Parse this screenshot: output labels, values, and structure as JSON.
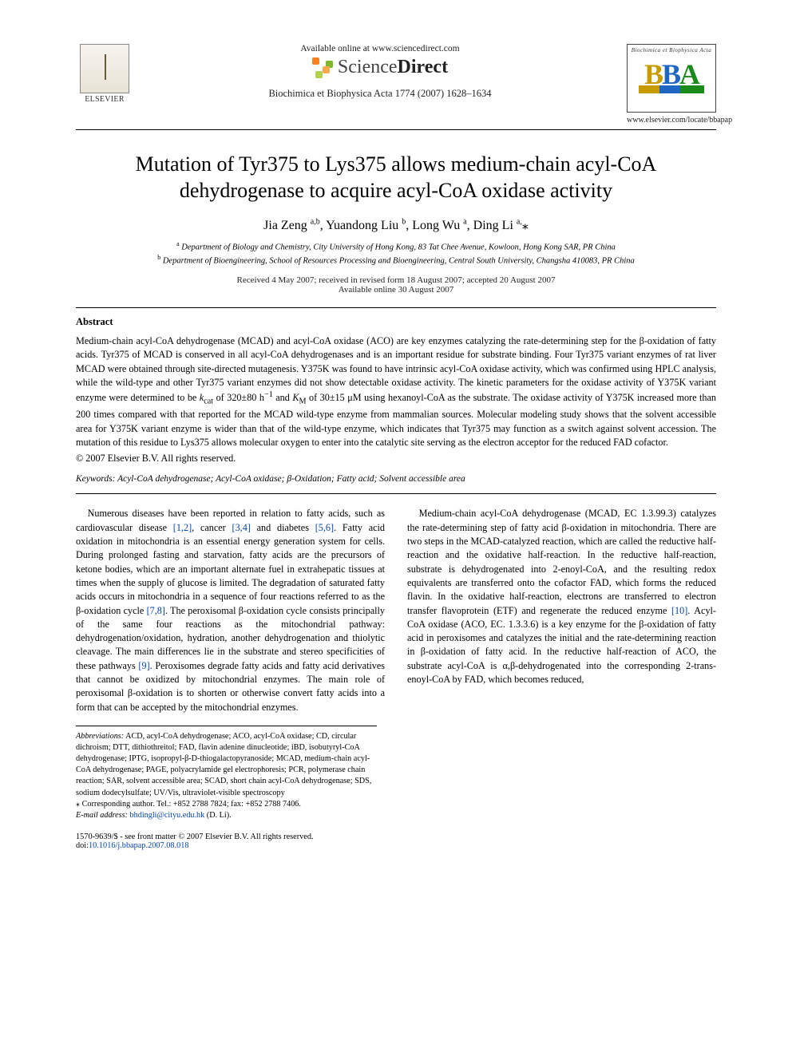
{
  "header": {
    "available_line": "Available online at www.sciencedirect.com",
    "sciencedirect": {
      "brand_pre": "Science",
      "brand_post": "Direct"
    },
    "sd_mark_colors": [
      "#f58220",
      "#7db928",
      "#b2d24a",
      "#f9a94b"
    ],
    "journal_ref": "Biochimica et Biophysica Acta 1774 (2007) 1628–1634",
    "elsevier_label": "ELSEVIER",
    "bba_top": "Biochimica et Biophysica Acta",
    "bba_letters": [
      "B",
      "B",
      "A"
    ],
    "bba_letter_colors": [
      "#c79a00",
      "#1f66c2",
      "#1a8a1a"
    ],
    "bba_bar_colors": [
      "#c79a00",
      "#1f66c2",
      "#1a8a1a"
    ],
    "bba_bar_widths": [
      26,
      26,
      30
    ],
    "bba_url": "www.elsevier.com/locate/bbapap"
  },
  "title": "Mutation of Tyr375 to Lys375 allows medium-chain acyl-CoA dehydrogenase to acquire acyl-CoA oxidase activity",
  "authors_html": "Jia Zeng <sup>a,b</sup>, Yuandong Liu <sup>b</sup>, Long Wu <sup>a</sup>, Ding Li <sup>a,</sup><span class='ast'>⁎</span>",
  "affiliations": {
    "a": "a Department of Biology and Chemistry, City University of Hong Kong, 83 Tat Chee Avenue, Kowloon, Hong Kong SAR, PR China",
    "b": "b Department of Bioengineering, School of Resources Processing and Bioengineering, Central South University, Changsha 410083, PR China"
  },
  "dates": {
    "line1": "Received 4 May 2007; received in revised form 18 August 2007; accepted 20 August 2007",
    "line2": "Available online 30 August 2007"
  },
  "abstract_heading": "Abstract",
  "abstract": "Medium-chain acyl-CoA dehydrogenase (MCAD) and acyl-CoA oxidase (ACO) are key enzymes catalyzing the rate-determining step for the β-oxidation of fatty acids. Tyr375 of MCAD is conserved in all acyl-CoA dehydrogenases and is an important residue for substrate binding. Four Tyr375 variant enzymes of rat liver MCAD were obtained through site-directed mutagenesis. Y375K was found to have intrinsic acyl-CoA oxidase activity, which was confirmed using HPLC analysis, while the wild-type and other Tyr375 variant enzymes did not show detectable oxidase activity. The kinetic parameters for the oxidase activity of Y375K variant enzyme were determined to be kcat of 320±80 h⁻¹ and KM of 30±15 μM using hexanoyl-CoA as the substrate. The oxidase activity of Y375K increased more than 200 times compared with that reported for the MCAD wild-type enzyme from mammalian sources. Molecular modeling study shows that the solvent accessible area for Y375K variant enzyme is wider than that of the wild-type enzyme, which indicates that Tyr375 may function as a switch against solvent accession. The mutation of this residue to Lys375 allows molecular oxygen to enter into the catalytic site serving as the electron acceptor for the reduced FAD cofactor.",
  "copyright": "© 2007 Elsevier B.V. All rights reserved.",
  "keywords_label": "Keywords:",
  "keywords": "Acyl-CoA dehydrogenase; Acyl-CoA oxidase; β-Oxidation; Fatty acid; Solvent accessible area",
  "body": {
    "p1_a": "Numerous diseases have been reported in relation to fatty acids, such as cardiovascular disease ",
    "c1": "[1,2]",
    "p1_b": ", cancer ",
    "c2": "[3,4]",
    "p1_c": " and diabetes ",
    "c3": "[5,6]",
    "p1_d": ". Fatty acid oxidation in mitochondria is an essential energy generation system for cells. During prolonged fasting and starvation, fatty acids are the precursors of ketone bodies, which are an important alternate fuel in extrahepatic tissues at times when the supply of glucose is limited. The degradation of saturated fatty acids occurs in mitochondria in a sequence of four reactions referred to as the β-oxidation cycle ",
    "c4": "[7,8]",
    "p1_e": ". The peroxisomal β-oxidation cycle consists principally of the same four reactions as the mitochondrial pathway: dehydrogenation/oxidation, hydration, another dehydrogenation and thiolytic cleavage. The main differences lie in the substrate and stereo specificities of these pathways ",
    "c5": "[9]",
    "p1_f": ". Peroxisomes degrade fatty acids and fatty acid derivatives that cannot be oxidized by mitochondrial enzymes. The main role of peroxisomal β-oxidation is to shorten or otherwise convert fatty acids into a form that can be accepted by the mitochondrial enzymes.",
    "p2_a": "Medium-chain acyl-CoA dehydrogenase (MCAD, EC 1.3.99.3) catalyzes the rate-determining step of fatty acid β-oxidation in mitochondria. There are two steps in the MCAD-catalyzed reaction, which are called the reductive half-reaction and the oxidative half-reaction. In the reductive half-reaction, substrate is dehydrogenated into 2-enoyl-CoA, and the resulting redox equivalents are transferred onto the cofactor FAD, which forms the reduced flavin. In the oxidative half-reaction, electrons are transferred to electron transfer flavoprotein (ETF) and regenerate the reduced enzyme ",
    "c6": "[10]",
    "p2_b": ". Acyl-CoA oxidase (ACO, EC. 1.3.3.6) is a key enzyme for the β-oxidation of fatty acid in peroxisomes and catalyzes the initial and the rate-determining reaction in β-oxidation of fatty acid. In the reductive half-reaction of ACO, the substrate acyl-CoA is α,β-dehydrogenated into the corresponding 2-trans-enoyl-CoA by FAD, which becomes reduced,"
  },
  "footnotes": {
    "abbrev_label": "Abbreviations:",
    "abbrev": " ACD, acyl-CoA dehydrogenase; ACO, acyl-CoA oxidase; CD, circular dichroism; DTT, dithiothreitol; FAD, flavin adenine dinucleotide; iBD, isobutyryl-CoA dehydrogenase; IPTG, isopropyl-β-D-thiogalactopyranoside; MCAD, medium-chain acyl-CoA dehydrogenase; PAGE, polyacrylamide gel electrophoresis; PCR, polymerase chain reaction; SAR, solvent accessible area; SCAD, short chain acyl-CoA dehydrogenase; SDS, sodium dodecylsulfate; UV/Vis, ultraviolet-visible spectroscopy",
    "corr_label": "⁎ Corresponding author. Tel.: +852 2788 7824; fax: +852 2788 7406.",
    "email_label": "E-mail address:",
    "email": "bhdingli@cityu.edu.hk",
    "email_tail": " (D. Li)."
  },
  "footer": {
    "left1": "1570-9639/$ - see front matter © 2007 Elsevier B.V. All rights reserved.",
    "doi_label": "doi:",
    "doi": "10.1016/j.bbapap.2007.08.018"
  },
  "colors": {
    "link": "#0645ad",
    "text": "#000000",
    "rule": "#000000"
  }
}
